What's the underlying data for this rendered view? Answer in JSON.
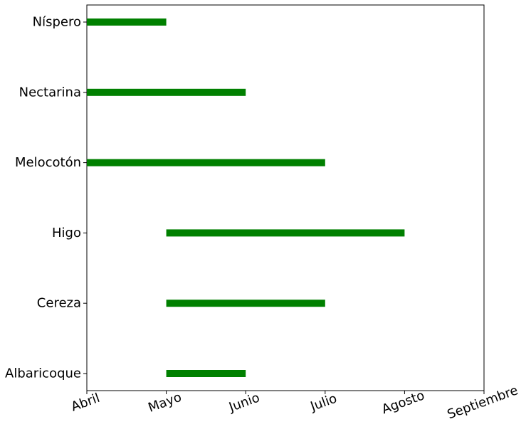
{
  "chart_data": {
    "type": "bar",
    "orientation": "horizontal",
    "title": "",
    "xlabel": "",
    "ylabel": "",
    "x_ticks": [
      "Abril",
      "Mayo",
      "Junio",
      "Julio",
      "Agosto",
      "Septiembre"
    ],
    "categories": [
      "Albaricoque",
      "Cereza",
      "Higo",
      "Melocotón",
      "Nectarina",
      "Níspero"
    ],
    "ranges": [
      {
        "start": "Mayo",
        "end": "Junio"
      },
      {
        "start": "Mayo",
        "end": "Julio"
      },
      {
        "start": "Mayo",
        "end": "Agosto"
      },
      {
        "start": "Abril",
        "end": "Julio"
      },
      {
        "start": "Abril",
        "end": "Junio"
      },
      {
        "start": "Abril",
        "end": "Mayo"
      }
    ],
    "bar_color": "#008000",
    "grid": false,
    "legend": "none"
  }
}
